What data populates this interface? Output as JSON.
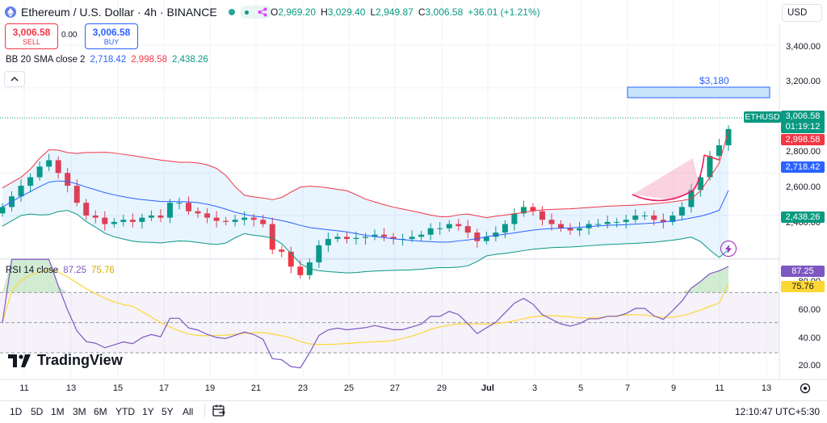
{
  "header": {
    "symbol_title": "Ethereum / U.S. Dollar · 4h · BINANCE",
    "ohlc": [
      {
        "k": "O",
        "v": "2,969.20"
      },
      {
        "k": "H",
        "v": "3,029.40"
      },
      {
        "k": "L",
        "v": "2,949.87"
      },
      {
        "k": "C",
        "v": "3,006.58"
      }
    ],
    "change": "+36.01 (+1.21%)",
    "currency": "USD"
  },
  "trade": {
    "sell_price": "3,006.58",
    "sell_label": "SELL",
    "buy_price": "3,006.58",
    "buy_label": "BUY",
    "spread": "0.00"
  },
  "bb_legend": {
    "label": "BB 20 SMA close 2",
    "basis": "2,718.42",
    "upper": "2,998.58",
    "lower": "2,438.26"
  },
  "rsi_legend": {
    "label": "RSI 14 close",
    "rsi": "87.25",
    "ma": "75.76"
  },
  "annotation": {
    "target": "$3,180"
  },
  "price_axis": [
    "3,400.00",
    "3,200.00",
    "2,800.00",
    "2,600.00",
    "2,400.00"
  ],
  "price_tags": {
    "symbol": "ETHUSD",
    "last": "3,006.58",
    "countdown": "01:19:12",
    "upper": "2,998.58",
    "basis": "2,718.42",
    "lower": "2,438.26"
  },
  "rsi_axis": [
    "80.00",
    "60.00",
    "40.00",
    "20.00"
  ],
  "rsi_tags": {
    "rsi": "87.25",
    "ma": "75.76"
  },
  "time_axis": [
    "11",
    "13",
    "15",
    "17",
    "19",
    "21",
    "23",
    "25",
    "27",
    "29",
    "Jul",
    "3",
    "5",
    "7",
    "9",
    "11",
    "13"
  ],
  "timeframes": [
    "1D",
    "5D",
    "1M",
    "3M",
    "6M",
    "YTD",
    "1Y",
    "5Y",
    "All"
  ],
  "clock": "12:10:47 UTC+5:30",
  "brand": "TradingView",
  "colors": {
    "up": "#089981",
    "down": "#f23645",
    "bb_upper": "#f23645",
    "bb_basis": "#2962ff",
    "bb_lower": "#089981",
    "bb_fill": "#2196f3",
    "rsi": "#7e57c2",
    "rsi_ma": "#fdd835",
    "ethusd_tag": "#089981",
    "upper_tag": "#f23645",
    "basis_tag": "#2962ff",
    "lower_tag": "#089981"
  },
  "chart_data": {
    "type": "candlestick",
    "title": "Ethereum / U.S. Dollar · 4h · BINANCE",
    "y_range": [
      2380,
      3480
    ],
    "close_series_approx": [
      2640,
      2690,
      2740,
      2780,
      2830,
      2860,
      2800,
      2740,
      2660,
      2600,
      2590,
      2560,
      2570,
      2580,
      2570,
      2590,
      2600,
      2590,
      2660,
      2660,
      2620,
      2610,
      2590,
      2575,
      2570,
      2580,
      2590,
      2580,
      2560,
      2440,
      2430,
      2360,
      2320,
      2380,
      2460,
      2490,
      2500,
      2490,
      2495,
      2500,
      2510,
      2500,
      2490,
      2490,
      2500,
      2510,
      2540,
      2540,
      2560,
      2550,
      2520,
      2480,
      2500,
      2520,
      2560,
      2610,
      2640,
      2620,
      2580,
      2560,
      2540,
      2530,
      2540,
      2560,
      2560,
      2570,
      2570,
      2580,
      2600,
      2600,
      2580,
      2570,
      2600,
      2640,
      2720,
      2780,
      2880,
      2930,
      3006.58
    ],
    "bollinger": {
      "period": 20,
      "std": 2,
      "upper_last": 2998.58,
      "basis_last": 2718.42,
      "lower_last": 2438.26
    },
    "target_label": "$3,180",
    "rsi": {
      "period": 14,
      "last": 87.25,
      "ma_last": 75.76,
      "bands": [
        70,
        50,
        30
      ],
      "y_range": [
        15,
        90
      ]
    }
  }
}
